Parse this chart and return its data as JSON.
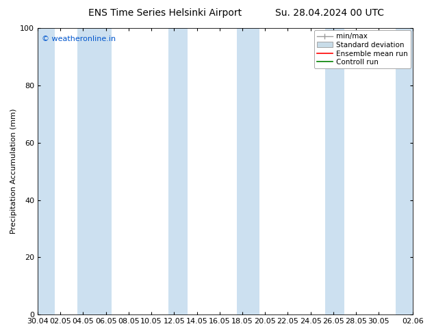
{
  "title_left": "ENS Time Series Helsinki Airport",
  "title_right": "Su. 28.04.2024 00 UTC",
  "ylabel": "Precipitation Accumulation (mm)",
  "ylim": [
    0,
    100
  ],
  "yticks": [
    0,
    20,
    40,
    60,
    80,
    100
  ],
  "watermark": "© weatheronline.in",
  "watermark_color": "#0055cc",
  "background_color": "#ffffff",
  "plot_bg_color": "#ffffff",
  "shaded_band_color": "#cce0f0",
  "legend_labels": [
    "min/max",
    "Standard deviation",
    "Ensemble mean run",
    "Controll run"
  ],
  "minmax_color": "#999999",
  "std_facecolor": "#c8dce8",
  "std_edgecolor": "#999999",
  "ensemble_color": "#ff0000",
  "control_color": "#008000",
  "xtick_labels": [
    "30.04",
    "02.05",
    "04.05",
    "06.05",
    "08.05",
    "10.05",
    "12.05",
    "14.05",
    "16.05",
    "18.05",
    "20.05",
    "22.05",
    "24.05",
    "26.05",
    "28.05",
    "30.05",
    "02.06"
  ],
  "xtick_positions": [
    0,
    2,
    4,
    6,
    8,
    10,
    12,
    14,
    16,
    18,
    20,
    22,
    24,
    26,
    28,
    30,
    33
  ],
  "x_start": 0,
  "x_end": 33,
  "shaded_bands": [
    [
      -0.2,
      1.5
    ],
    [
      3.5,
      6.5
    ],
    [
      11.5,
      13.2
    ],
    [
      17.5,
      19.5
    ],
    [
      25.3,
      27.0
    ],
    [
      31.5,
      33.2
    ]
  ],
  "tick_fontsize": 8,
  "label_fontsize": 8,
  "title_fontsize": 10,
  "legend_fontsize": 7.5,
  "watermark_fontsize": 8
}
